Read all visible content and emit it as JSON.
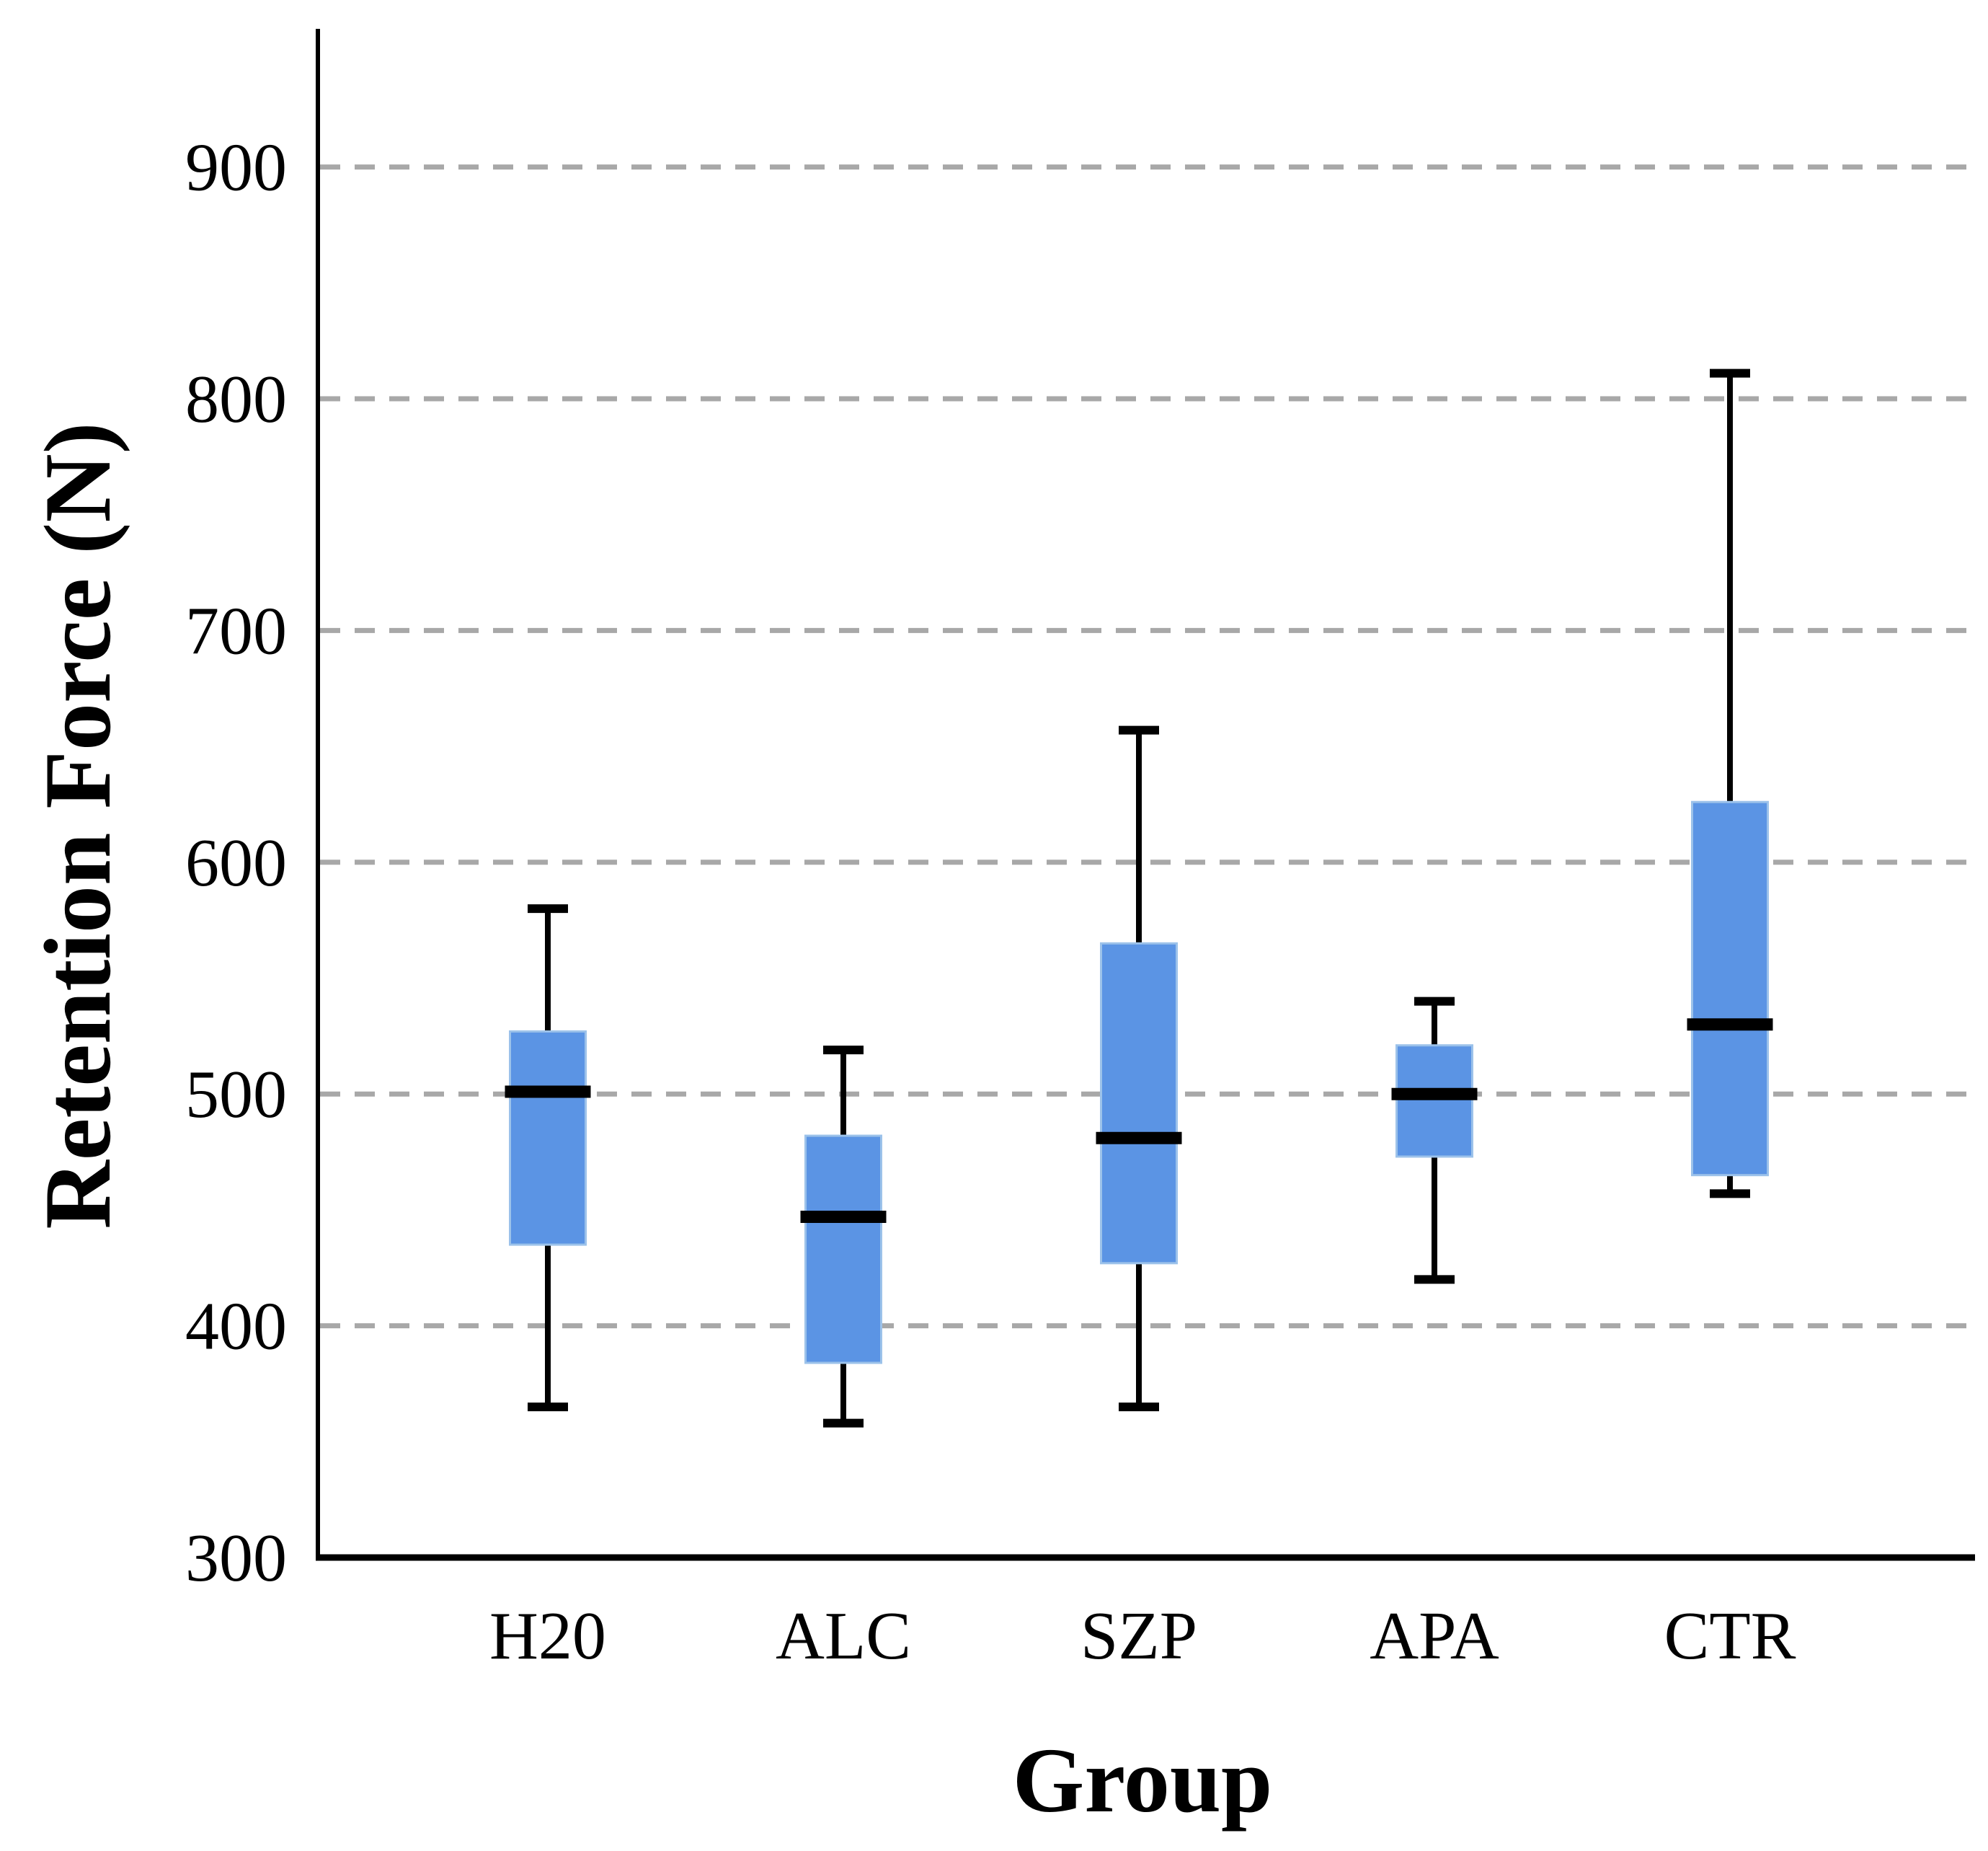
{
  "page": {
    "background": "#ffffff"
  },
  "chart_data": {
    "type": "box",
    "title": "",
    "xlabel": "Group",
    "ylabel": "Retention Force (N)",
    "categories": [
      "H20",
      "ALC",
      "SZP",
      "APA",
      "CTR"
    ],
    "boxes": [
      {
        "category": "H20",
        "min": 365,
        "q1": 435,
        "median": 501,
        "q3": 527,
        "max": 580
      },
      {
        "category": "ALC",
        "min": 358,
        "q1": 384,
        "median": 447,
        "q3": 482,
        "max": 519
      },
      {
        "category": "SZP",
        "min": 365,
        "q1": 427,
        "median": 481,
        "q3": 565,
        "max": 657
      },
      {
        "category": "APA",
        "min": 420,
        "q1": 473,
        "median": 500,
        "q3": 521,
        "max": 540
      },
      {
        "category": "CTR",
        "min": 457,
        "q1": 465,
        "median": 530,
        "q3": 626,
        "max": 811
      }
    ],
    "yticks": [
      300,
      400,
      500,
      600,
      700,
      800,
      900
    ],
    "ylim": [
      300,
      960
    ],
    "grid": {
      "horizontal": true,
      "style": "dashed",
      "gridline_values": [
        400,
        500,
        600,
        700,
        800,
        900
      ]
    },
    "legend": {
      "visible": false
    },
    "colors": {
      "box_fill": "#5B94E4",
      "box_edge": "#9CC2EA",
      "median": "#000000",
      "whisker": "#000000",
      "gridline": "#A8A8A8",
      "axis": "#000000",
      "text": "#000000"
    }
  }
}
